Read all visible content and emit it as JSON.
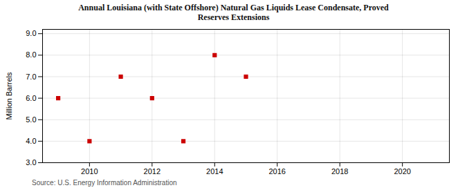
{
  "chart_data": {
    "type": "scatter",
    "title": "Annual Louisiana (with State Offshore) Natural Gas Liquids Lease Condensate, Proved\nReserves Extensions",
    "ylabel": "Million Barrels",
    "source": "Source: U.S. Energy Information Administration",
    "x": [
      2009,
      2010,
      2011,
      2012,
      2013,
      2014,
      2015
    ],
    "values": [
      6.0,
      4.0,
      7.0,
      6.0,
      4.0,
      8.0,
      7.0
    ],
    "color": "#cc0000",
    "marker": "square",
    "xlim": [
      2008.5,
      2021.5
    ],
    "ylim": [
      3.0,
      9.2
    ],
    "xticks": [
      2010,
      2012,
      2014,
      2016,
      2018,
      2020
    ],
    "yticks": [
      {
        "value": 3.0,
        "label": "3.0"
      },
      {
        "value": 4.0,
        "label": "4.0"
      },
      {
        "value": 5.0,
        "label": "5.0"
      },
      {
        "value": 6.0,
        "label": "6.0"
      },
      {
        "value": 7.0,
        "label": "7.0"
      },
      {
        "value": 8.0,
        "label": "8.0"
      },
      {
        "value": 9.0,
        "label": "9.0"
      }
    ],
    "grid": true
  }
}
